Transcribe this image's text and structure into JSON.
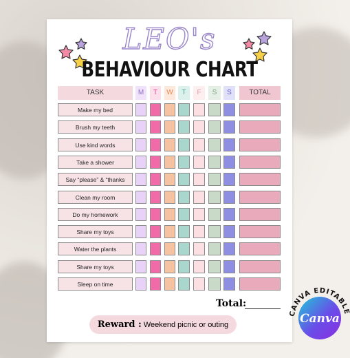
{
  "name": "LEO's",
  "title": "BEHAVIOUR CHART",
  "table": {
    "header": [
      "TASK",
      "M",
      "T",
      "W",
      "T",
      "F",
      "S",
      "S",
      "TOTAL"
    ],
    "rows": [
      "Make my bed",
      "Brush my teeth",
      "Use kind words",
      "Take a shower",
      "Say “please” & “thanks",
      "Clean my room",
      "Do my homework",
      "Share my toys",
      "Water the plants",
      "Share my toys",
      "Sleep on time"
    ]
  },
  "total_label": "Total:",
  "reward": {
    "label": "Reward :",
    "text": "Weekend picnic or outing"
  },
  "badge": {
    "ring_text": "CANVA EDITABLE",
    "logo": "Canva"
  }
}
